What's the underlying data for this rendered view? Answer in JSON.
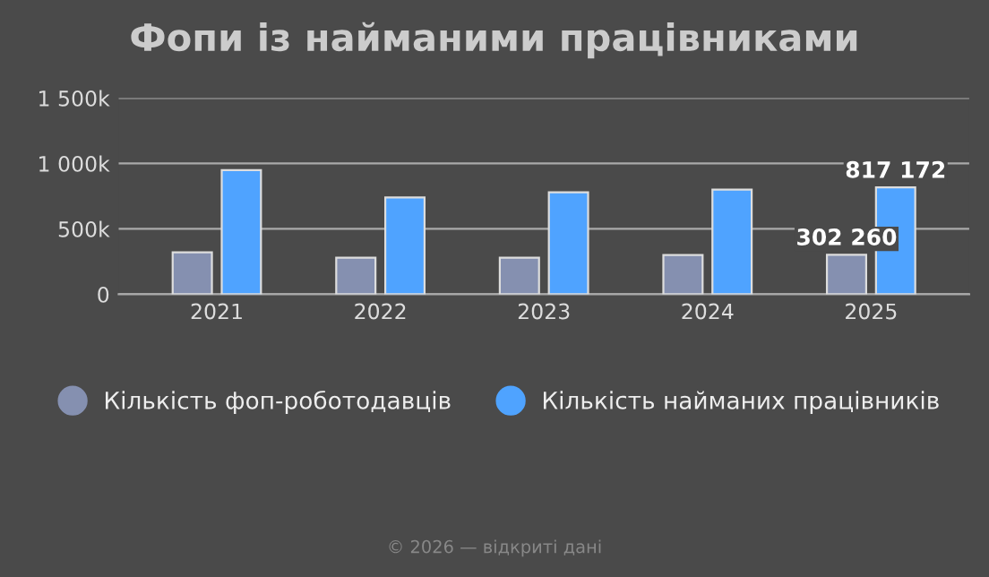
{
  "chart_data": {
    "type": "bar",
    "title": "Фопи із найманими працівниками",
    "categories": [
      "2021",
      "2022",
      "2023",
      "2024",
      "2025"
    ],
    "series": [
      {
        "name": "Кількість фоп-роботодавців",
        "color": "#8590b0",
        "values": [
          320000,
          280000,
          280000,
          300000,
          302260
        ],
        "value_labels": [
          null,
          null,
          null,
          null,
          "302 260"
        ]
      },
      {
        "name": "Кількість найманих працівників",
        "color": "#4fa3ff",
        "values": [
          950000,
          740000,
          780000,
          800000,
          817172
        ],
        "value_labels": [
          null,
          null,
          null,
          null,
          "817 172"
        ]
      }
    ],
    "ylim": [
      0,
      1500000
    ],
    "yticks": [
      {
        "value": 0,
        "label": "0"
      },
      {
        "value": 500000,
        "label": "500k"
      },
      {
        "value": 1000000,
        "label": "1 000k"
      },
      {
        "value": 1500000,
        "label": "1 500k"
      }
    ],
    "grid": "y",
    "legend": "bottom",
    "annotations": [
      "© 2026 — відкриті дані"
    ]
  }
}
